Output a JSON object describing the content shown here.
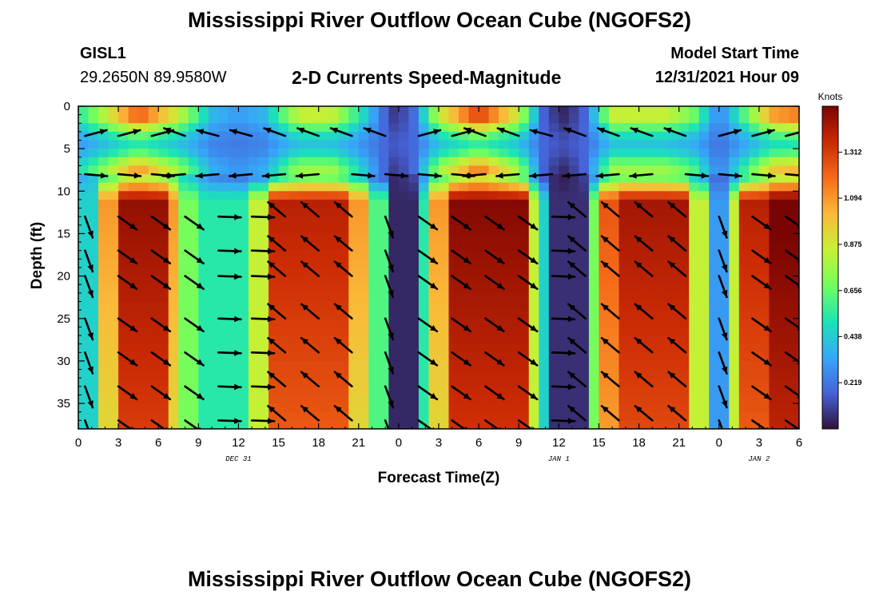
{
  "page": {
    "title": "Mississippi River Outflow Ocean Cube (NGOFS2)",
    "title_repeat": "Mississippi River Outflow Ocean Cube (NGOFS2)",
    "station": "GISL1",
    "coords": "29.2650N  89.9580W",
    "subtitle": "2-D Currents Speed-Magnitude",
    "model_start_label": "Model Start Time",
    "model_start_value": "12/31/2021 Hour 09"
  },
  "chart_data": {
    "type": "heatmap",
    "xlabel": "Forecast Time(Z)",
    "ylabel": "Depth (ft)",
    "x_tick_labels": [
      "0",
      "3",
      "6",
      "9",
      "12",
      "15",
      "18",
      "21",
      "0",
      "3",
      "6",
      "9",
      "12",
      "15",
      "18",
      "21",
      "0",
      "3",
      "6"
    ],
    "x_range_hours": [
      0,
      54
    ],
    "date_labels": [
      {
        "label": "DEC 31",
        "hour": 12
      },
      {
        "label": "JAN 1",
        "hour": 36
      },
      {
        "label": "JAN 2",
        "hour": 51
      }
    ],
    "y_tick_labels": [
      "0",
      "5",
      "10",
      "15",
      "20",
      "25",
      "30",
      "35"
    ],
    "ylim": [
      0,
      38
    ],
    "y_inverted": true,
    "colorbar": {
      "units": "Knots",
      "labels": [
        "1.312",
        "1.094",
        "0.875",
        "0.656",
        "0.438",
        "0.219"
      ],
      "range": [
        0,
        1.53
      ],
      "colors": [
        "#30123b",
        "#4662d8",
        "#36a8f9",
        "#1ae4b6",
        "#72fe5e",
        "#c8ef34",
        "#faba39",
        "#f66b19",
        "#cb2a04",
        "#7a0403"
      ]
    },
    "arrow_depths_ft": [
      3.5,
      8,
      13,
      17,
      20,
      25,
      29,
      33,
      37
    ]
  },
  "colors": {
    "arrow": "#000000",
    "axis": "#000000",
    "background": "#ffffff"
  }
}
